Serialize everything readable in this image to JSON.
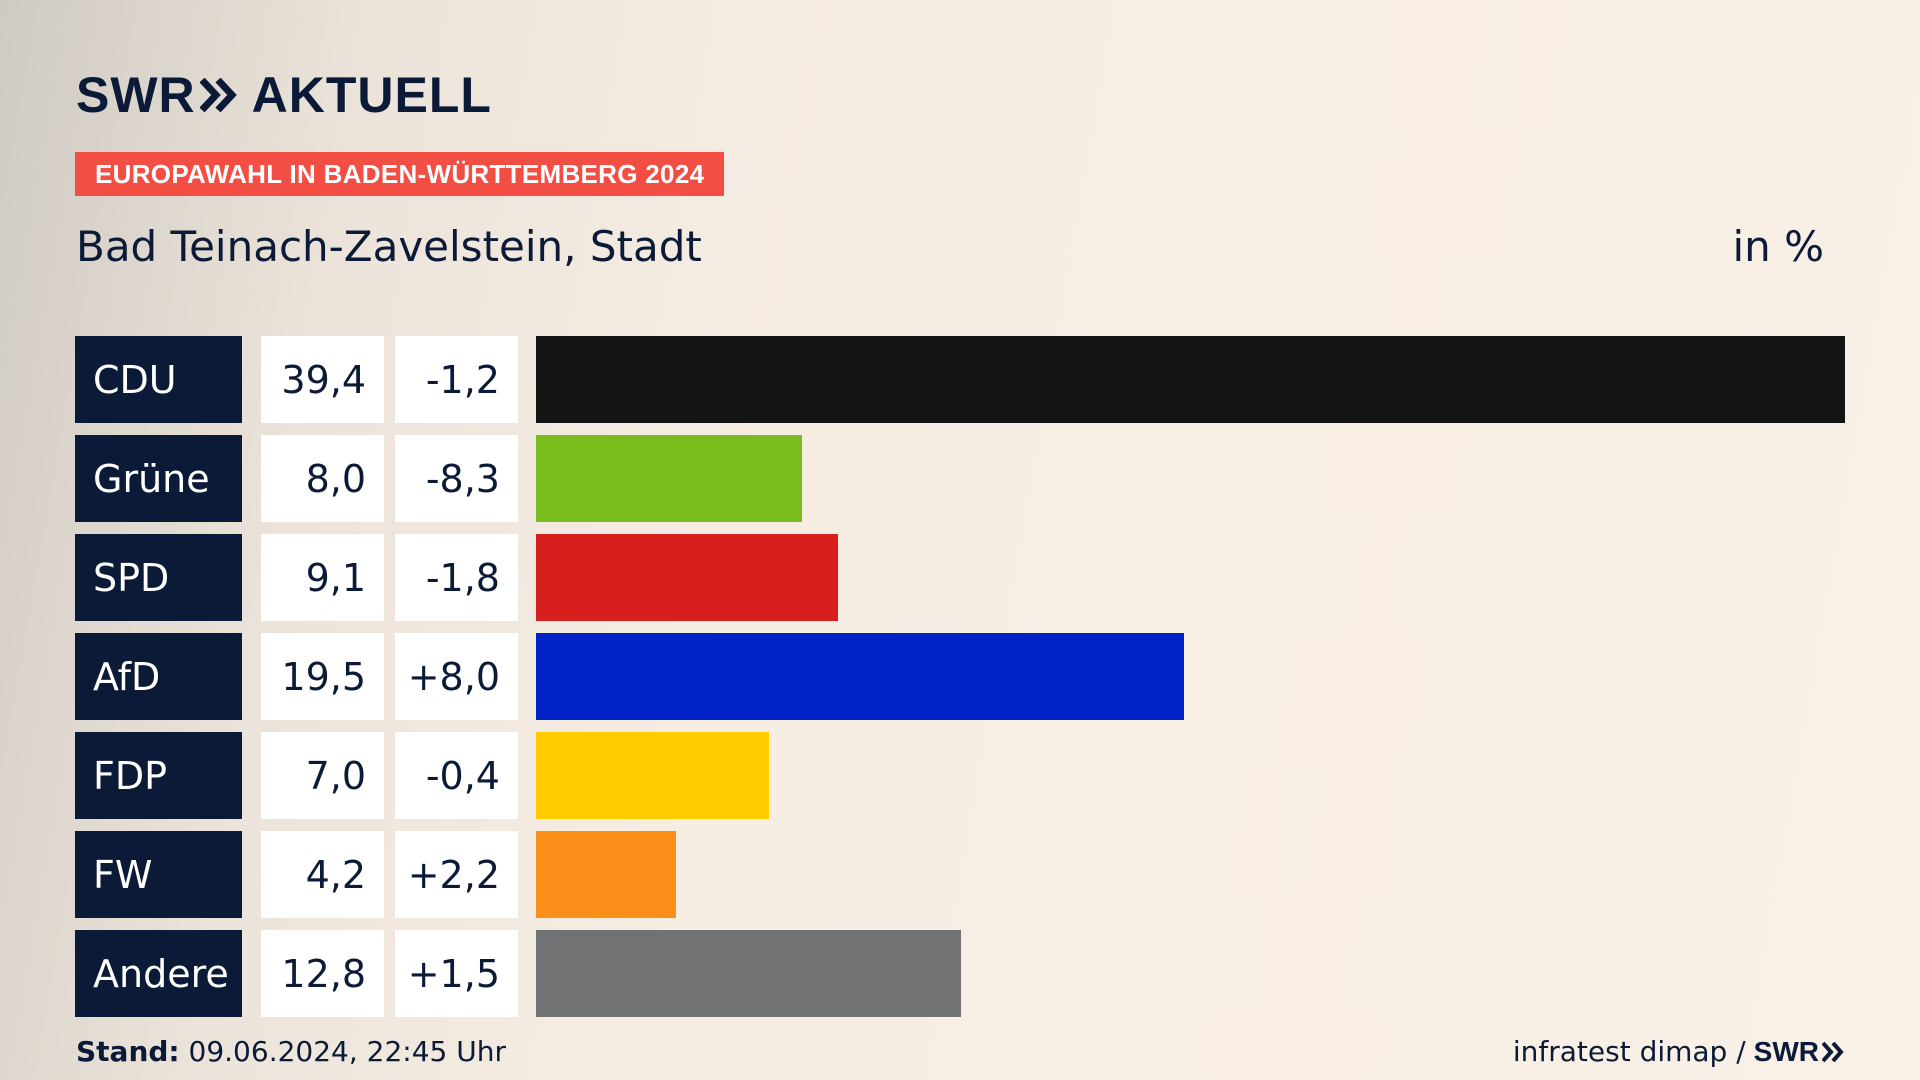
{
  "brand": {
    "name": "SWR",
    "product": "AKTUELL"
  },
  "banner": "EUROPAWAHL IN BADEN-WÜRTTEMBERG 2024",
  "subtitle": "Bad Teinach-Zavelstein, Stadt",
  "unit": "in %",
  "footer": {
    "stand_label": "Stand:",
    "stand_value": "09.06.2024, 22:45 Uhr",
    "source": "infratest dimap /",
    "source_brand": "SWR"
  },
  "chart_data": {
    "type": "bar",
    "orientation": "horizontal",
    "categories": [
      "CDU",
      "Grüne",
      "SPD",
      "AfD",
      "FDP",
      "FW",
      "Andere"
    ],
    "values": [
      39.4,
      8.0,
      9.1,
      19.5,
      7.0,
      4.2,
      12.8
    ],
    "values_label": [
      "39,4",
      "8,0",
      "9,1",
      "19,5",
      "7,0",
      "4,2",
      "12,8"
    ],
    "diff_label": [
      "-1,2",
      "-8,3",
      "-1,8",
      "+8,0",
      "-0,4",
      "+2,2",
      "+1,5"
    ],
    "colors": [
      "#141414",
      "#78bc1e",
      "#d71f1d",
      "#0021c6",
      "#ffcc00",
      "#fa8f19",
      "#717273"
    ],
    "xlim": [
      0,
      39.4
    ]
  }
}
